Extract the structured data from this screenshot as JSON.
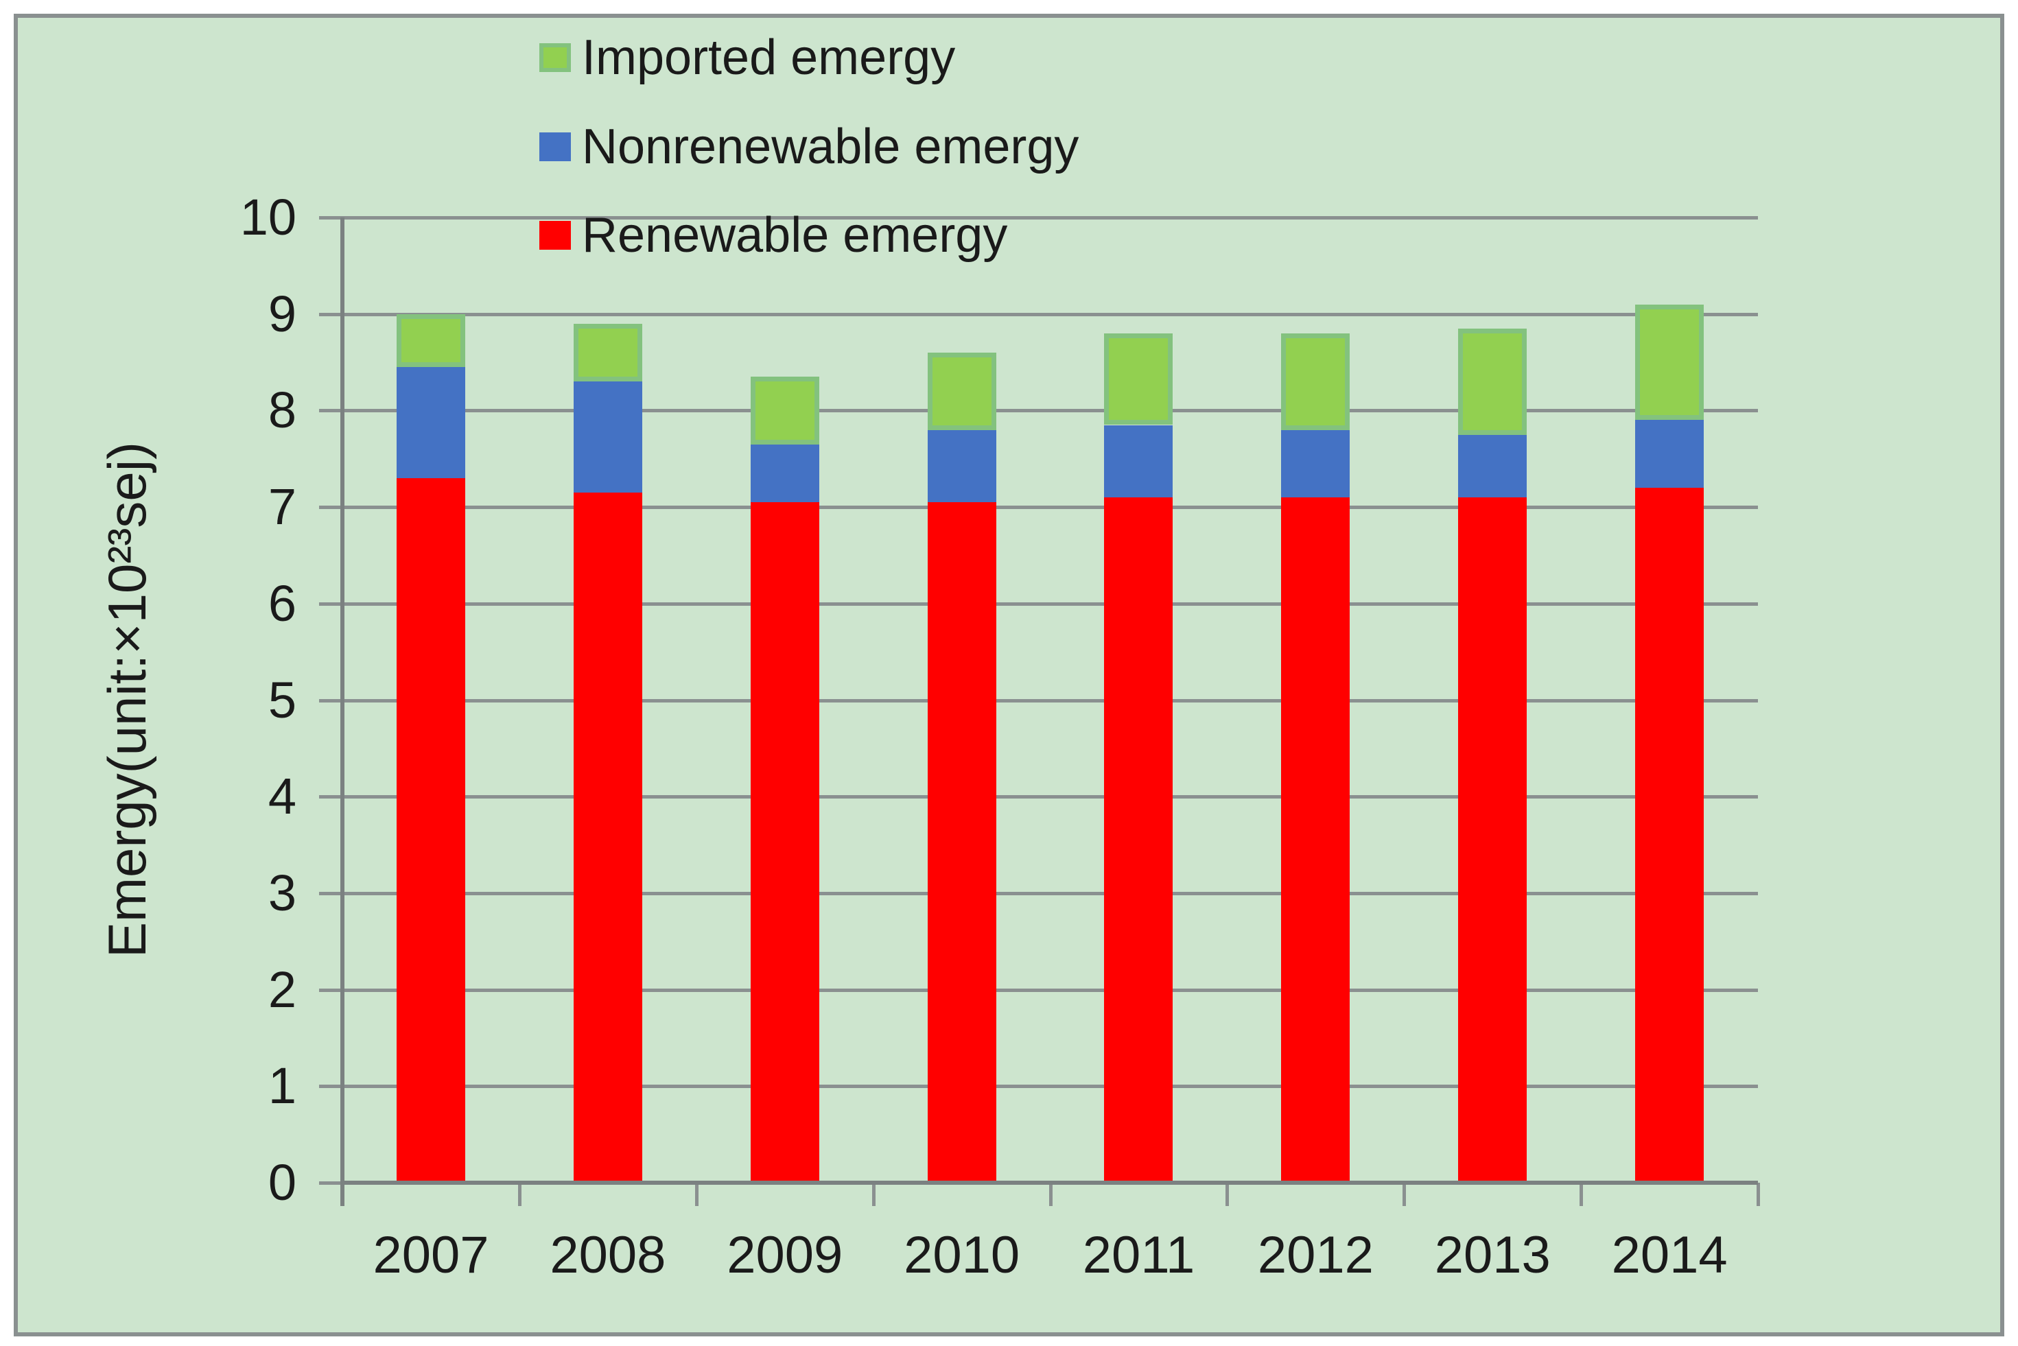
{
  "page": {
    "background": "#FFFFFF",
    "canvas_background": "#CDE5CE",
    "frame_border_color": "#8A9090"
  },
  "chart_data": {
    "type": "bar",
    "stacked": true,
    "title": "",
    "categories": [
      "2007",
      "2008",
      "2009",
      "2010",
      "2011",
      "2012",
      "2013",
      "2014"
    ],
    "series": [
      {
        "name": "Renewable emergy",
        "color": "#FF0000",
        "values": [
          7.3,
          7.15,
          7.05,
          7.05,
          7.1,
          7.1,
          7.1,
          7.2
        ]
      },
      {
        "name": "Nonrenewable emergy",
        "color": "#4472C4",
        "values": [
          1.15,
          1.15,
          0.6,
          0.75,
          0.75,
          0.7,
          0.65,
          0.7
        ]
      },
      {
        "name": "Imported emergy",
        "color": "#92D050",
        "border_color": "#83C27E",
        "values": [
          0.55,
          0.6,
          0.7,
          0.8,
          0.95,
          1.0,
          1.1,
          1.2
        ]
      }
    ],
    "stack_totals": [
      9.0,
      8.9,
      8.35,
      8.6,
      8.8,
      8.8,
      8.85,
      9.1
    ],
    "xlabel": "",
    "ylabel": "Emergy(unit:×10²³sej)",
    "ylim": [
      0,
      10
    ],
    "yticks": [
      "0",
      "1",
      "2",
      "3",
      "4",
      "5",
      "6",
      "7",
      "8",
      "9",
      "10"
    ],
    "grid": true,
    "gridline_color": "#8A9090",
    "axis_color": "#7B8181",
    "text_color": "#1A1A1A",
    "legend": {
      "position": "top-left",
      "orientation": "vertical",
      "entries": [
        "Imported emergy",
        "Nonrenewable emergy",
        "Renewable emergy"
      ]
    }
  }
}
